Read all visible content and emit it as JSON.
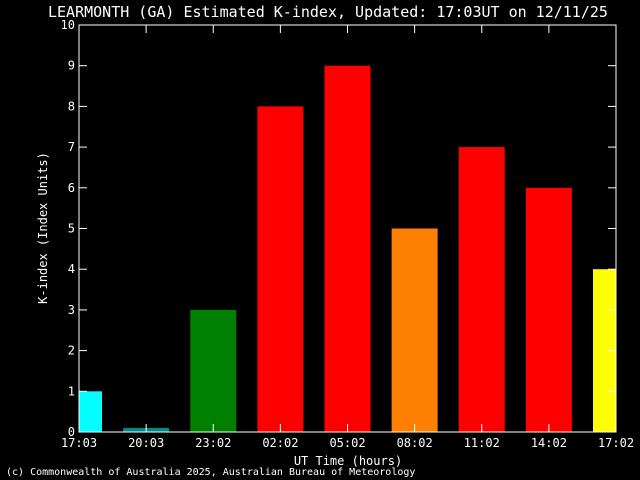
{
  "chart_data": {
    "type": "bar",
    "title": "LEARMONTH (GA) Estimated K-index, Updated: 17:03UT on 12/11/25",
    "ylabel": "K-index (Index Units)",
    "xlabel": "UT Time (hours)",
    "footer": "(c) Commonwealth of Australia 2025, Australian Bureau of Meteorology",
    "ylim": [
      0,
      10
    ],
    "yticks": [
      "0",
      "1",
      "2",
      "3",
      "4",
      "5",
      "6",
      "7",
      "8",
      "9",
      "10"
    ],
    "xticks": [
      "17:03",
      "20:03",
      "23:02",
      "02:02",
      "05:02",
      "08:02",
      "11:02",
      "14:02",
      "17:02"
    ],
    "grid": false,
    "bars": [
      {
        "value": 1,
        "color": "#00ffff"
      },
      {
        "value": 0.1,
        "color": "#008b8b"
      },
      {
        "value": 3,
        "color": "#008000"
      },
      {
        "value": 8,
        "color": "#ff0000"
      },
      {
        "value": 9,
        "color": "#ff0000"
      },
      {
        "value": 5,
        "color": "#ff8000"
      },
      {
        "value": 7,
        "color": "#ff0000"
      },
      {
        "value": 6,
        "color": "#ff0000"
      },
      {
        "value": 4,
        "color": "#ffff00"
      }
    ]
  }
}
